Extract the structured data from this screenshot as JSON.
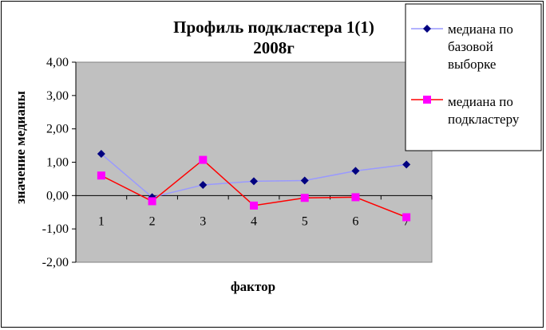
{
  "chart_data": {
    "type": "line",
    "title_lines": [
      "Профиль подкластера 1(1)",
      "2008г"
    ],
    "xlabel": "фактор",
    "ylabel": "значение медианы",
    "categories": [
      "1",
      "2",
      "3",
      "4",
      "5",
      "6",
      "7"
    ],
    "y_tick_labels": [
      "4,00",
      "3,00",
      "2,00",
      "1,00",
      "0,00",
      "-1,00",
      "-2,00"
    ],
    "ylim": [
      -2,
      4
    ],
    "grid": false,
    "legend_position": "top-right",
    "series": [
      {
        "name_lines": [
          "медиана по",
          "базовой",
          "выборке"
        ],
        "values": [
          1.25,
          -0.05,
          0.32,
          0.43,
          0.45,
          0.74,
          0.93
        ],
        "line_color": "#9999ff",
        "marker": "diamond",
        "marker_color": "#000080"
      },
      {
        "name_lines": [
          "медиана по",
          "подкластеру"
        ],
        "values": [
          0.6,
          -0.17,
          1.07,
          -0.3,
          -0.07,
          -0.05,
          -0.65
        ],
        "line_color": "#ff0000",
        "marker": "square",
        "marker_color": "#ff00ff"
      }
    ],
    "plot_background": "#c0c0c0"
  }
}
